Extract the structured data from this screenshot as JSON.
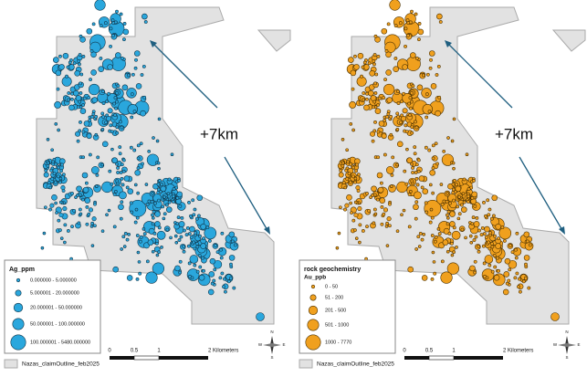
{
  "left_map": {
    "annotation": "+7km",
    "legend": {
      "title": "Ag_ppm",
      "classes": [
        "0.000000 - 5.000000",
        "5.000001 - 20.000000",
        "20.000001 - 50.000000",
        "50.000001 - 100.000000",
        "100.000001 - 5480.000000"
      ]
    },
    "scale_bar": [
      "0",
      "0.5",
      "1",
      "2 Kilometers"
    ],
    "north_arrow": {
      "n": "N",
      "e": "E",
      "s": "S",
      "w": "W"
    },
    "claim_legend": "Nazas_claimOutline_feb2025"
  },
  "right_map": {
    "annotation": "+7km",
    "legend": {
      "title": "rock geochemistry",
      "subtitle": "Au_ppb",
      "classes": [
        "0 - 50",
        "51 - 200",
        "201 - 500",
        "501 - 1000",
        "1000 - 7770"
      ]
    },
    "scale_bar": [
      "0",
      "0.5",
      "1",
      "2 Kilometers"
    ],
    "north_arrow": {
      "n": "N",
      "e": "E",
      "s": "S",
      "w": "W"
    },
    "claim_legend": "Nazas_claimOutline_feb2025"
  }
}
